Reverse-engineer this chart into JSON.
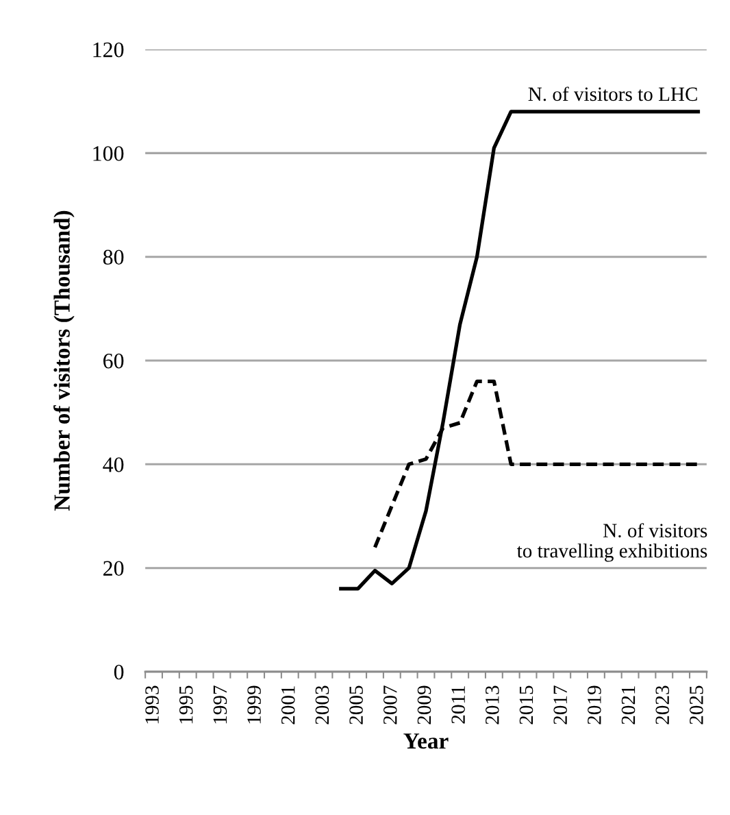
{
  "chart_data": {
    "type": "line",
    "xlabel": "Year",
    "ylabel": "Number of visitors (Thousand)",
    "categories": [
      "1993",
      null,
      "1995",
      null,
      "1997",
      null,
      "1999",
      null,
      "2001",
      null,
      "2003",
      null,
      "2005",
      null,
      "2007",
      null,
      "2009",
      null,
      "2011",
      null,
      "2013",
      null,
      "2015",
      null,
      "2017",
      null,
      "2019",
      null,
      "2021",
      null,
      "2023",
      null,
      "2025"
    ],
    "series": [
      {
        "name": "N. of visitors to LHC",
        "color": "#000000",
        "line_style": "solid",
        "values": [
          null,
          null,
          null,
          null,
          null,
          null,
          null,
          null,
          null,
          null,
          null,
          16,
          16,
          19.5,
          17,
          20,
          31,
          48,
          67,
          80,
          101,
          108,
          108,
          108,
          108,
          108,
          108,
          108,
          108,
          108,
          108,
          108,
          108
        ]
      },
      {
        "name": "N. of visitors\nto travelling exhibitions",
        "color": "#000000",
        "line_style": "dashed",
        "values": [
          null,
          null,
          null,
          null,
          null,
          null,
          null,
          null,
          null,
          null,
          null,
          null,
          null,
          24,
          32,
          40,
          41,
          47,
          48,
          56,
          56,
          40,
          40,
          40,
          40,
          40,
          40,
          40,
          40,
          40,
          40,
          40,
          40
        ]
      }
    ],
    "ylim": [
      0,
      120
    ],
    "yticks": [
      0,
      20,
      40,
      60,
      80,
      100,
      120
    ],
    "grid": "y",
    "legend": false,
    "marker": "none"
  }
}
